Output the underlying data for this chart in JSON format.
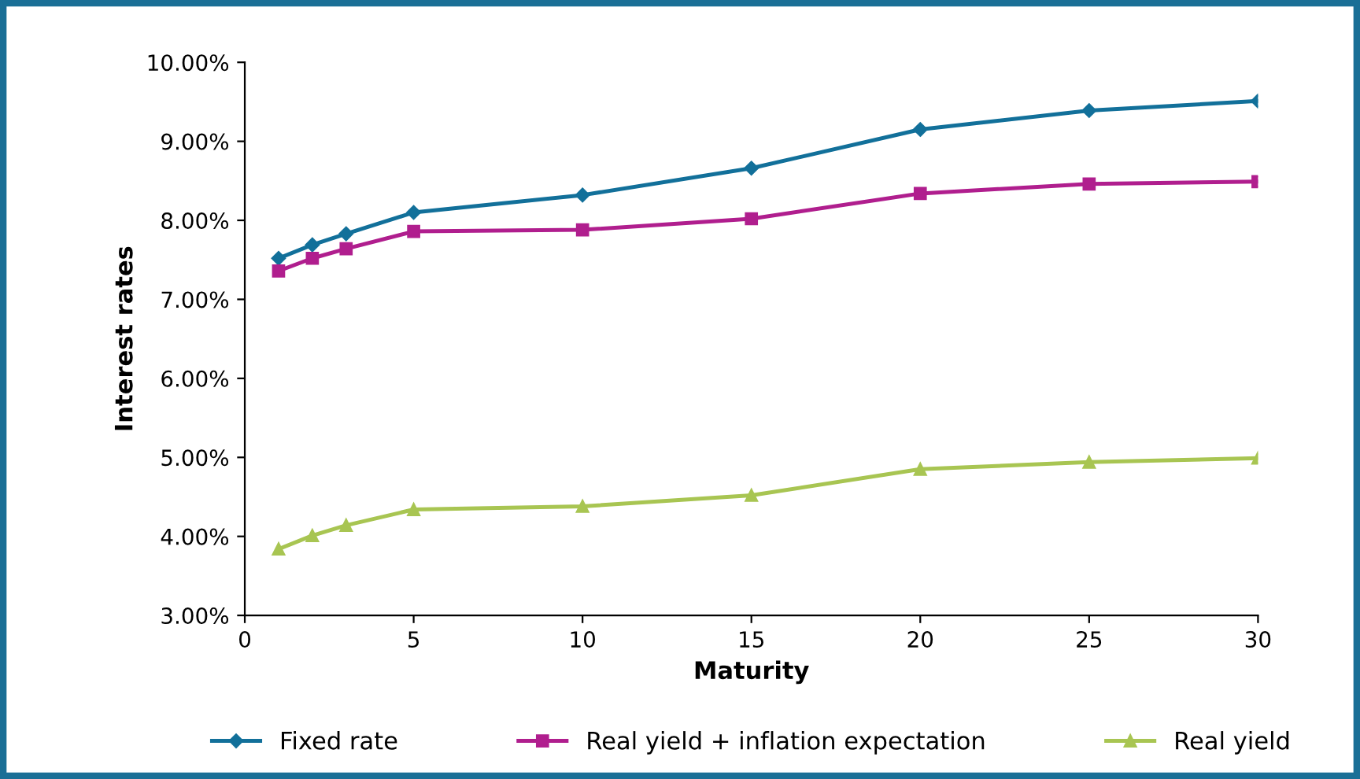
{
  "chart_data": {
    "type": "line",
    "xlabel": "Maturity",
    "ylabel": "Interest rates",
    "x": [
      1,
      2,
      3,
      5,
      10,
      15,
      20,
      25,
      30
    ],
    "series": [
      {
        "name": "Fixed rate",
        "color": "#12709a",
        "marker": "diamond",
        "values": [
          7.52,
          7.69,
          7.83,
          8.1,
          8.32,
          8.66,
          9.15,
          9.39,
          9.51
        ]
      },
      {
        "name": "Real yield + inflation expectation",
        "color": "#b01e8e",
        "marker": "square",
        "values": [
          7.36,
          7.52,
          7.64,
          7.86,
          7.88,
          8.02,
          8.34,
          8.46,
          8.49
        ]
      },
      {
        "name": "Real yield",
        "color": "#a8c552",
        "marker": "triangle",
        "values": [
          3.84,
          4.01,
          4.14,
          4.34,
          4.38,
          4.52,
          4.85,
          4.94,
          4.99
        ]
      }
    ],
    "xlim": [
      0,
      30
    ],
    "xticks": [
      0,
      5,
      10,
      15,
      20,
      25,
      30
    ],
    "ylim": [
      3,
      10
    ],
    "yticks": [
      {
        "value": 3,
        "label": "3.00%"
      },
      {
        "value": 4,
        "label": "4.00%"
      },
      {
        "value": 5,
        "label": "5.00%"
      },
      {
        "value": 6,
        "label": "6.00%"
      },
      {
        "value": 7,
        "label": "7.00%"
      },
      {
        "value": 8,
        "label": "8.00%"
      },
      {
        "value": 9,
        "label": "9.00%"
      },
      {
        "value": 10,
        "label": "10.00%"
      }
    ],
    "grid": false,
    "legend": "bottom",
    "line_style": "solid"
  }
}
